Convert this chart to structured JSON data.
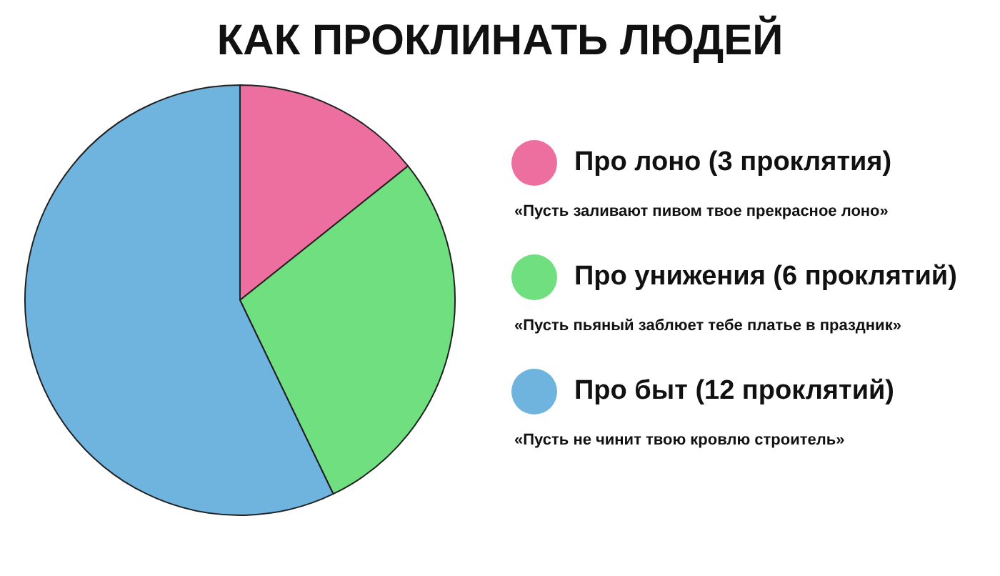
{
  "chart_data": {
    "type": "pie",
    "title": "КАК ПРОКЛИНАТЬ ЛЮДЕЙ",
    "categories": [
      "Про лоно (3 проклятия)",
      "Про унижения (6 проклятий)",
      "Про быт (12 проклятий)"
    ],
    "values": [
      3,
      6,
      12
    ],
    "colors": [
      "#ec6fa0",
      "#70df80",
      "#6fb4df"
    ],
    "legend": "right",
    "annotations": [
      "«Пусть заливают пивом твое прекрасное лоно»",
      "«Пусть пьяный заблюет тебе платье в праздник»",
      "«Пусть не чинит твою кровлю строитель»"
    ]
  }
}
